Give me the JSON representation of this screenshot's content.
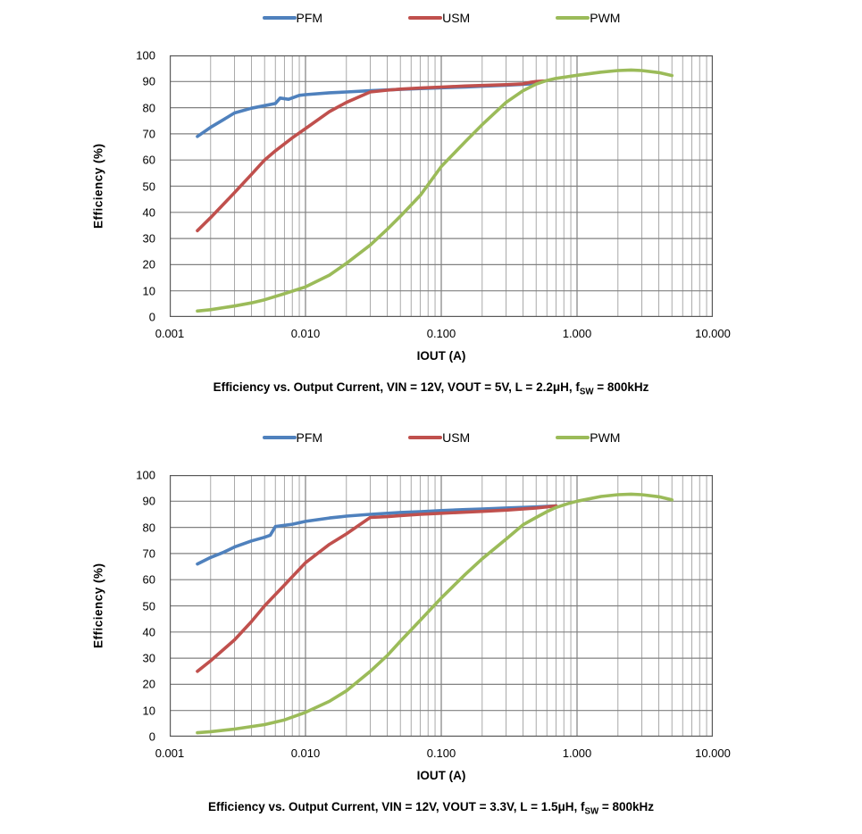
{
  "colors": {
    "pfm": "#4F81BD",
    "usm": "#C0504D",
    "pwm": "#9BBB59",
    "grid_major": "#808080",
    "grid_minor": "#A9A9A9",
    "plot_border": "#595959",
    "text": "#000000",
    "background": "#FFFFFF"
  },
  "chart_data": [
    {
      "type": "line",
      "title": "Efficiency vs. Output Current, VIN = 12V, VOUT = 5V, L = 2.2μH, fSW = 800kHz",
      "title_parts": {
        "prefix": "Efficiency vs. Output Current, VIN = 12V, VOUT = 5V, L = 2.2μH, f",
        "sub": "SW",
        "suffix": " = 800kHz"
      },
      "xlabel": "IOUT (A)",
      "ylabel": "Efficiency  (%)",
      "x_scale": "log",
      "xlim": [
        0.001,
        10
      ],
      "ylim": [
        0,
        100
      ],
      "grid": true,
      "legend_position": "top",
      "x_tick_values": [
        0.001,
        0.01,
        0.1,
        1,
        10
      ],
      "x_tick_labels": [
        "0.001",
        "0.010",
        "0.100",
        "1.000",
        "10.000"
      ],
      "y_tick_values": [
        0,
        10,
        20,
        30,
        40,
        50,
        60,
        70,
        80,
        90,
        100
      ],
      "y_tick_labels": [
        "0",
        "10",
        "20",
        "30",
        "40",
        "50",
        "60",
        "70",
        "80",
        "90",
        "100"
      ],
      "series": [
        {
          "name": "PFM",
          "color": "#4F81BD",
          "points": [
            [
              0.0016,
              69
            ],
            [
              0.002,
              72.5
            ],
            [
              0.0025,
              75.5
            ],
            [
              0.003,
              78
            ],
            [
              0.004,
              79.8
            ],
            [
              0.005,
              80.8
            ],
            [
              0.006,
              81.6
            ],
            [
              0.0065,
              83.7
            ],
            [
              0.0075,
              83.2
            ],
            [
              0.009,
              84.7
            ],
            [
              0.01,
              85
            ],
            [
              0.015,
              85.7
            ],
            [
              0.02,
              86
            ],
            [
              0.03,
              86.5
            ],
            [
              0.05,
              87
            ],
            [
              0.07,
              87.3
            ],
            [
              0.1,
              87.6
            ],
            [
              0.15,
              87.9
            ],
            [
              0.2,
              88.2
            ],
            [
              0.3,
              88.6
            ],
            [
              0.4,
              88.9
            ],
            [
              0.5,
              89.2
            ]
          ]
        },
        {
          "name": "USM",
          "color": "#C0504D",
          "points": [
            [
              0.0016,
              33
            ],
            [
              0.002,
              38
            ],
            [
              0.003,
              47.5
            ],
            [
              0.004,
              54.5
            ],
            [
              0.005,
              60
            ],
            [
              0.006,
              63.5
            ],
            [
              0.008,
              68.5
            ],
            [
              0.01,
              72
            ],
            [
              0.015,
              78.5
            ],
            [
              0.02,
              82
            ],
            [
              0.03,
              86
            ],
            [
              0.04,
              86.7
            ],
            [
              0.05,
              87.1
            ],
            [
              0.07,
              87.5
            ],
            [
              0.1,
              87.9
            ],
            [
              0.15,
              88.3
            ],
            [
              0.2,
              88.5
            ],
            [
              0.3,
              88.8
            ],
            [
              0.4,
              89.1
            ],
            [
              0.45,
              89.7
            ],
            [
              0.5,
              90
            ],
            [
              0.58,
              90.2
            ]
          ]
        },
        {
          "name": "PWM",
          "color": "#9BBB59",
          "points": [
            [
              0.0016,
              2.3
            ],
            [
              0.002,
              2.8
            ],
            [
              0.003,
              4.2
            ],
            [
              0.004,
              5.4
            ],
            [
              0.005,
              6.6
            ],
            [
              0.007,
              8.9
            ],
            [
              0.01,
              11.5
            ],
            [
              0.015,
              16
            ],
            [
              0.02,
              20.5
            ],
            [
              0.03,
              27.5
            ],
            [
              0.04,
              33.5
            ],
            [
              0.05,
              38.5
            ],
            [
              0.07,
              46.5
            ],
            [
              0.1,
              57.5
            ],
            [
              0.15,
              67
            ],
            [
              0.2,
              73.5
            ],
            [
              0.3,
              82
            ],
            [
              0.4,
              86.5
            ],
            [
              0.5,
              89
            ],
            [
              0.6,
              90.4
            ],
            [
              0.7,
              91.2
            ],
            [
              1.0,
              92.4
            ],
            [
              1.5,
              93.6
            ],
            [
              2.0,
              94.2
            ],
            [
              2.5,
              94.4
            ],
            [
              3.0,
              94.2
            ],
            [
              4.0,
              93.4
            ],
            [
              5.0,
              92.3
            ]
          ]
        }
      ]
    },
    {
      "type": "line",
      "title": "Efficiency vs. Output Current, VIN = 12V, VOUT = 3.3V, L = 1.5μH, fSW = 800kHz",
      "title_parts": {
        "prefix": "Efficiency vs. Output Current, VIN = 12V, VOUT = 3.3V, L = 1.5μH, f",
        "sub": "SW",
        "suffix": " = 800kHz"
      },
      "xlabel": "IOUT (A)",
      "ylabel": "Efficiency  (%)",
      "x_scale": "log",
      "xlim": [
        0.001,
        10
      ],
      "ylim": [
        0,
        100
      ],
      "grid": true,
      "legend_position": "top",
      "x_tick_values": [
        0.001,
        0.01,
        0.1,
        1,
        10
      ],
      "x_tick_labels": [
        "0.001",
        "0.010",
        "0.100",
        "1.000",
        "10.000"
      ],
      "y_tick_values": [
        0,
        10,
        20,
        30,
        40,
        50,
        60,
        70,
        80,
        90,
        100
      ],
      "y_tick_labels": [
        "0",
        "10",
        "20",
        "30",
        "40",
        "50",
        "60",
        "70",
        "80",
        "90",
        "100"
      ],
      "series": [
        {
          "name": "PFM",
          "color": "#4F81BD",
          "points": [
            [
              0.0016,
              66
            ],
            [
              0.002,
              68.5
            ],
            [
              0.0025,
              70.5
            ],
            [
              0.003,
              72.5
            ],
            [
              0.004,
              74.8
            ],
            [
              0.005,
              76.2
            ],
            [
              0.0055,
              77
            ],
            [
              0.006,
              80.3
            ],
            [
              0.008,
              81.2
            ],
            [
              0.01,
              82.3
            ],
            [
              0.015,
              83.6
            ],
            [
              0.02,
              84.3
            ],
            [
              0.03,
              85
            ],
            [
              0.05,
              85.7
            ],
            [
              0.07,
              86
            ],
            [
              0.1,
              86.4
            ],
            [
              0.15,
              86.8
            ],
            [
              0.2,
              87
            ],
            [
              0.3,
              87.4
            ],
            [
              0.5,
              87.8
            ],
            [
              0.7,
              88.2
            ]
          ]
        },
        {
          "name": "USM",
          "color": "#C0504D",
          "points": [
            [
              0.0016,
              25
            ],
            [
              0.002,
              29
            ],
            [
              0.003,
              37
            ],
            [
              0.004,
              44
            ],
            [
              0.005,
              50
            ],
            [
              0.007,
              58
            ],
            [
              0.01,
              66.5
            ],
            [
              0.015,
              73.5
            ],
            [
              0.02,
              77.5
            ],
            [
              0.03,
              83.8
            ],
            [
              0.04,
              84.1
            ],
            [
              0.05,
              84.5
            ],
            [
              0.07,
              85
            ],
            [
              0.1,
              85.4
            ],
            [
              0.15,
              85.8
            ],
            [
              0.2,
              86.1
            ],
            [
              0.3,
              86.6
            ],
            [
              0.5,
              87.4
            ],
            [
              0.7,
              88.2
            ]
          ]
        },
        {
          "name": "PWM",
          "color": "#9BBB59",
          "points": [
            [
              0.0016,
              1.5
            ],
            [
              0.002,
              1.9
            ],
            [
              0.003,
              2.9
            ],
            [
              0.005,
              4.6
            ],
            [
              0.007,
              6.4
            ],
            [
              0.01,
              9.3
            ],
            [
              0.015,
              13.5
            ],
            [
              0.02,
              17.5
            ],
            [
              0.03,
              25
            ],
            [
              0.04,
              31
            ],
            [
              0.05,
              36.5
            ],
            [
              0.07,
              44.5
            ],
            [
              0.1,
              53
            ],
            [
              0.15,
              62
            ],
            [
              0.2,
              68
            ],
            [
              0.3,
              75.5
            ],
            [
              0.4,
              81
            ],
            [
              0.5,
              83.8
            ],
            [
              0.6,
              86
            ],
            [
              0.7,
              87.6
            ],
            [
              0.85,
              89
            ],
            [
              1.0,
              90
            ],
            [
              1.5,
              91.8
            ],
            [
              2.0,
              92.5
            ],
            [
              2.5,
              92.7
            ],
            [
              3.0,
              92.5
            ],
            [
              4.0,
              91.7
            ],
            [
              5.0,
              90.5
            ]
          ]
        }
      ]
    }
  ]
}
